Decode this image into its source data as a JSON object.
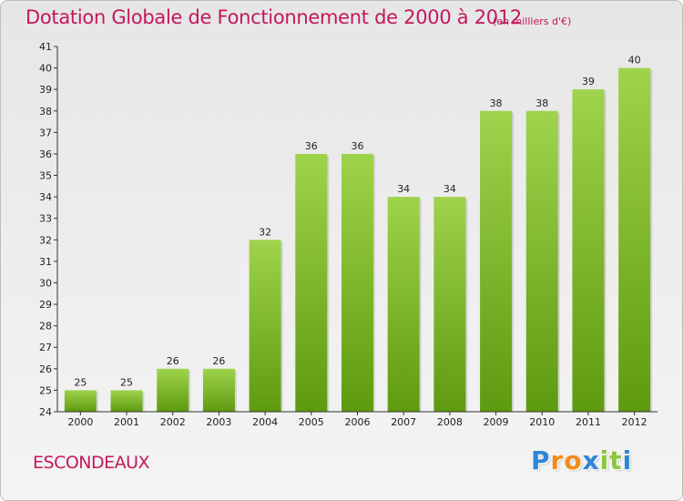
{
  "chart_data": {
    "type": "bar",
    "title": "Dotation Globale de Fonctionnement de 2000 à 2012",
    "subtitle": "(en milliers d'€)",
    "categories": [
      "2000",
      "2001",
      "2002",
      "2003",
      "2004",
      "2005",
      "2006",
      "2007",
      "2008",
      "2009",
      "2010",
      "2011",
      "2012"
    ],
    "values": [
      25,
      25,
      26,
      26,
      32,
      36,
      36,
      34,
      34,
      38,
      38,
      39,
      40
    ],
    "data_labels": [
      "25",
      "25",
      "26",
      "26",
      "32",
      "36",
      "36",
      "34",
      "34",
      "38",
      "38",
      "39",
      "40"
    ],
    "ylim": [
      24,
      41
    ],
    "yticks": [
      24,
      25,
      26,
      27,
      28,
      29,
      30,
      31,
      32,
      33,
      34,
      35,
      36,
      37,
      38,
      39,
      40,
      41
    ],
    "xlabel": "",
    "ylabel": "",
    "grid": false,
    "legend": "none",
    "bar_color_light": "#9fd34c",
    "bar_color_dark": "#5e9a10"
  },
  "footer": {
    "commune": "ESCONDEAUX",
    "logo_letters": [
      "P",
      "r",
      "o",
      "x",
      "i",
      "t",
      "i"
    ],
    "logo_colors": [
      "#2f86d6",
      "#f28c1a",
      "#f28c1a",
      "#2f86d6",
      "#8cc63f",
      "#8cc63f",
      "#2f86d6"
    ]
  },
  "colors": {
    "title": "#c4185c",
    "axis": "#333333",
    "text": "#222222"
  }
}
